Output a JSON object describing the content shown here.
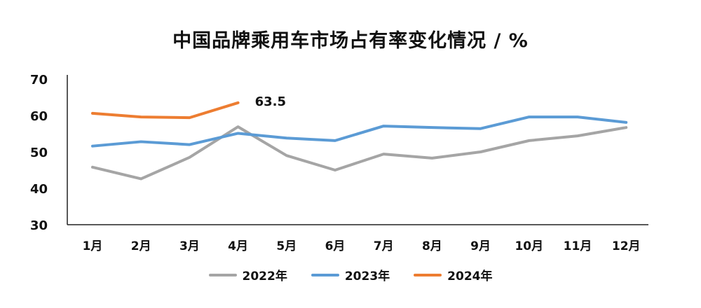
{
  "chart_data": {
    "type": "line",
    "title": "中国品牌乘用车市场占有率变化情况 / %",
    "categories": [
      "1月",
      "2月",
      "3月",
      "4月",
      "5月",
      "6月",
      "7月",
      "8月",
      "9月",
      "10月",
      "11月",
      "12月"
    ],
    "ylim": [
      30,
      70
    ],
    "yticks": [
      30,
      40,
      50,
      60,
      70
    ],
    "grid": false,
    "legend_position": "bottom",
    "series": [
      {
        "name": "2022年",
        "color": "#a5a5a5",
        "values": [
          45.8,
          42.6,
          48.5,
          56.9,
          49.0,
          45.0,
          49.4,
          48.3,
          50.0,
          53.1,
          54.4,
          56.7
        ]
      },
      {
        "name": "2023年",
        "color": "#5b9bd5",
        "values": [
          51.6,
          52.8,
          52.0,
          55.1,
          53.8,
          53.1,
          57.1,
          56.7,
          56.4,
          59.6,
          59.6,
          58.1
        ]
      },
      {
        "name": "2024年",
        "color": "#ed7d31",
        "values": [
          60.6,
          59.6,
          59.4,
          63.5,
          null,
          null,
          null,
          null,
          null,
          null,
          null,
          null
        ]
      }
    ],
    "annotations": [
      {
        "series": 2,
        "index": 3,
        "text": "63.5"
      }
    ]
  }
}
